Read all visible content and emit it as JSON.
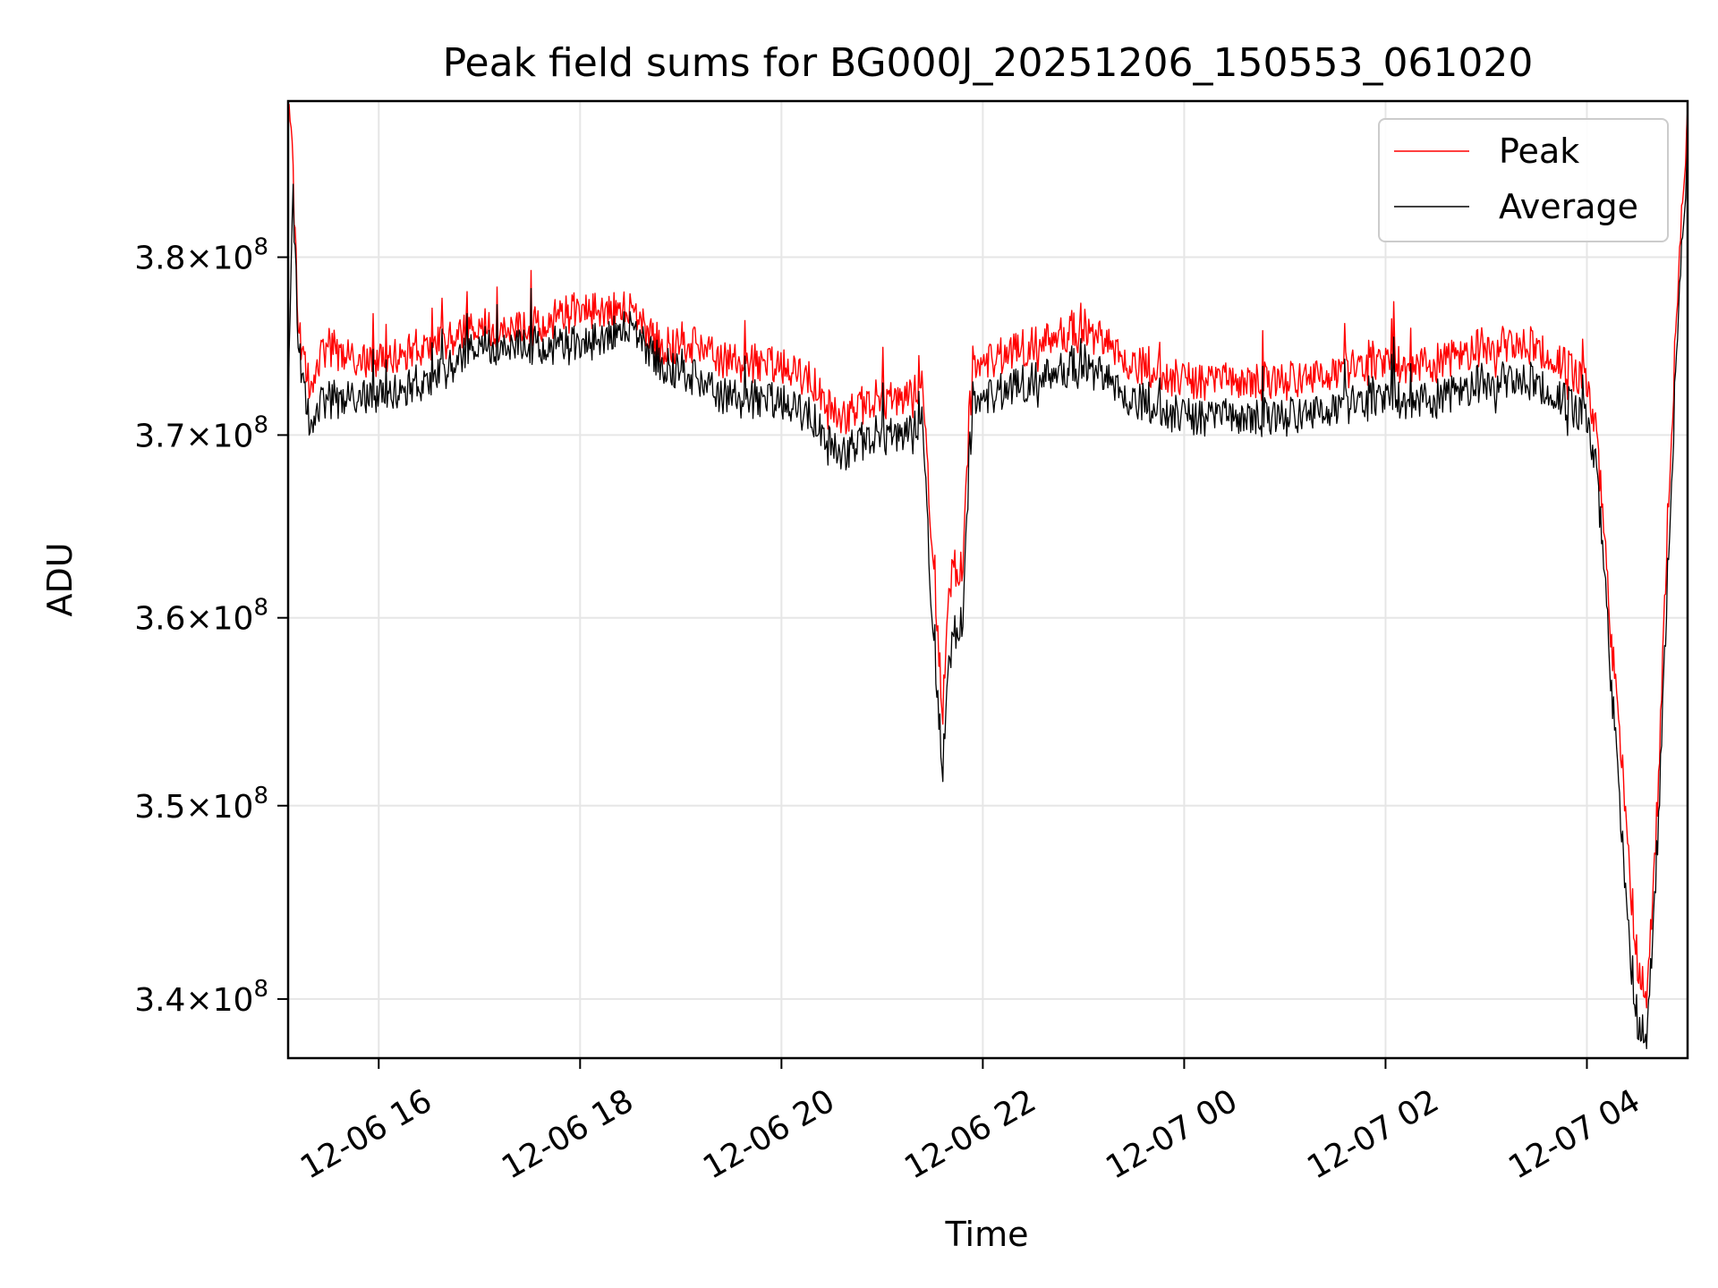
{
  "chart_data": {
    "type": "line",
    "title": "Peak field sums for BG000J_20251206_150553_061020",
    "xlabel": "Time",
    "ylabel": "ADU",
    "xlim_hours": [
      -0.9,
      13.0
    ],
    "ylim": [
      337000000.0,
      389000000.0
    ],
    "yscale": "log",
    "grid": true,
    "legend_position": "top-right",
    "x_ticks": [
      {
        "hour": 0,
        "label": "12-06 16"
      },
      {
        "hour": 2,
        "label": "12-06 18"
      },
      {
        "hour": 4,
        "label": "12-06 20"
      },
      {
        "hour": 6,
        "label": "12-06 22"
      },
      {
        "hour": 8,
        "label": "12-07 00"
      },
      {
        "hour": 10,
        "label": "12-07 02"
      },
      {
        "hour": 12,
        "label": "12-07 04"
      }
    ],
    "y_ticks": [
      {
        "value": 340000000.0,
        "mantissa": "3.4",
        "exponent": "8"
      },
      {
        "value": 350000000.0,
        "mantissa": "3.5",
        "exponent": "8"
      },
      {
        "value": 360000000.0,
        "mantissa": "3.6",
        "exponent": "8"
      },
      {
        "value": 370000000.0,
        "mantissa": "3.7",
        "exponent": "8"
      },
      {
        "value": 380000000.0,
        "mantissa": "3.8",
        "exponent": "8"
      }
    ],
    "y_tick_times": "×10",
    "series": [
      {
        "name": "Peak",
        "color": "#ff0000",
        "x_hours": [
          -0.9,
          -0.85,
          -0.8,
          -0.7,
          -0.5,
          -0.2,
          0.5,
          1.0,
          1.5,
          2.0,
          2.5,
          2.8,
          3.2,
          3.5,
          4.0,
          4.3,
          4.6,
          4.9,
          5.2,
          5.4,
          5.5,
          5.6,
          5.7,
          5.75,
          5.8,
          5.9,
          6.0,
          6.5,
          7.0,
          7.5,
          8.0,
          9.0,
          10.0,
          10.5,
          11.0,
          11.5,
          12.0,
          12.1,
          12.2,
          12.3,
          12.35,
          12.4,
          12.5,
          12.6,
          12.7,
          12.8,
          12.9,
          13.0
        ],
        "values": [
          389000000.0,
          385000000.0,
          376000000.0,
          373000000.0,
          375000000.0,
          374000000.0,
          375000000.0,
          376000000.0,
          376000000.0,
          377000000.0,
          377000000.0,
          375000000.0,
          375000000.0,
          374000000.0,
          374000000.0,
          373000000.0,
          371000000.0,
          372000000.0,
          372000000.0,
          373000000.0,
          364000000.0,
          355000000.0,
          364000000.0,
          362000000.0,
          363000000.0,
          374000000.0,
          374000000.0,
          375000000.0,
          376000000.0,
          374000000.0,
          373000000.0,
          373000000.0,
          374000000.0,
          374000000.0,
          375000000.0,
          375000000.0,
          373000000.0,
          370000000.0,
          362000000.0,
          355000000.0,
          352000000.0,
          348000000.0,
          342000000.0,
          340000000.0,
          350000000.0,
          365000000.0,
          378000000.0,
          388000000.0
        ]
      },
      {
        "name": "Average",
        "color": "#000000",
        "x_hours": [
          -0.9,
          -0.85,
          -0.8,
          -0.7,
          -0.5,
          -0.2,
          0.5,
          1.0,
          1.5,
          2.0,
          2.5,
          2.8,
          3.2,
          3.5,
          4.0,
          4.3,
          4.6,
          4.9,
          5.2,
          5.4,
          5.5,
          5.6,
          5.7,
          5.75,
          5.8,
          5.9,
          6.0,
          6.5,
          7.0,
          7.5,
          8.0,
          9.0,
          10.0,
          10.5,
          11.0,
          11.5,
          12.0,
          12.1,
          12.2,
          12.3,
          12.35,
          12.4,
          12.5,
          12.6,
          12.7,
          12.8,
          12.9,
          13.0
        ],
        "values": [
          371000000.0,
          384000000.0,
          375000000.0,
          371000000.0,
          372000000.0,
          372000000.0,
          373000000.0,
          375000000.0,
          375000000.0,
          375000000.0,
          376000000.0,
          374000000.0,
          373000000.0,
          372000000.0,
          372000000.0,
          371000000.0,
          369000000.0,
          370000000.0,
          370000000.0,
          371000000.0,
          360000000.0,
          352000000.0,
          360000000.0,
          359000000.0,
          360000000.0,
          372000000.0,
          372000000.0,
          373000000.0,
          374000000.0,
          372000000.0,
          371000000.0,
          371000000.0,
          372000000.0,
          372000000.0,
          373000000.0,
          373000000.0,
          371000000.0,
          368000000.0,
          360000000.0,
          352000000.0,
          348000000.0,
          344000000.0,
          339000000.0,
          338000000.0,
          348000000.0,
          362000000.0,
          376000000.0,
          386000000.0
        ]
      }
    ]
  }
}
